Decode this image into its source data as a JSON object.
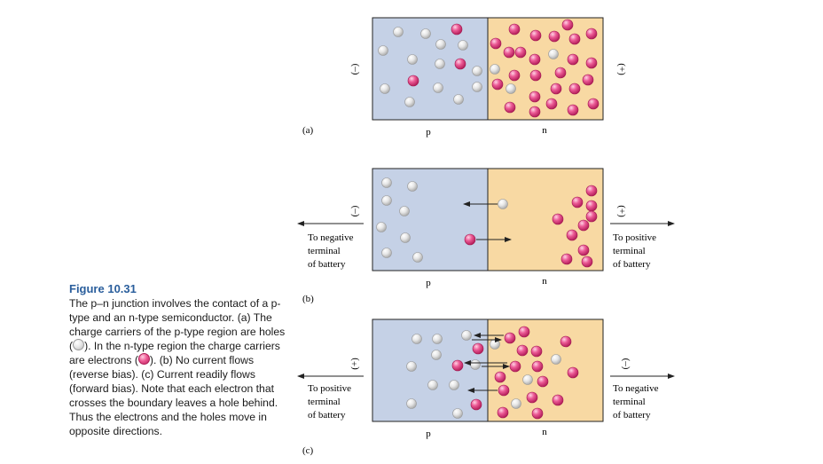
{
  "panels": [
    {
      "label": "(a)",
      "left_sign": "(–)",
      "right_sign": "(+)",
      "p_label": "p",
      "n_label": "n"
    },
    {
      "label": "(b)",
      "left_sign": "(–)",
      "right_sign": "(+)",
      "p_label": "p",
      "n_label": "n",
      "left_battery": [
        "To negative",
        "terminal",
        "of battery"
      ],
      "right_battery": [
        "To positive",
        "terminal",
        "of battery"
      ]
    },
    {
      "label": "(c)",
      "left_sign": "(+)",
      "right_sign": "(–)",
      "p_label": "p",
      "n_label": "n",
      "left_battery": [
        "To positive",
        "terminal",
        "of battery"
      ],
      "right_battery": [
        "To negative",
        "terminal",
        "of battery"
      ]
    }
  ],
  "caption": {
    "title": "Figure 10.31",
    "part1": "The p–n junction involves the contact of a p-type and an n-type semiconductor. (a) The charge carriers of the p-type region are holes (",
    "part2": "). In the n-type region the charge carriers are electrons (",
    "part3": "). (b) No current flows (reverse bias). (c) Current readily flows (forward bias). Note that each electron that crosses the boundary leaves a hole behind. Thus the electrons and the holes move in opposite directions."
  },
  "colors": {
    "p_region": "#c5d1e6",
    "n_region": "#f8d9a3",
    "electron": "#e94d8b",
    "hole": "#e6e6e6",
    "caption_title": "#2a5e9c"
  }
}
